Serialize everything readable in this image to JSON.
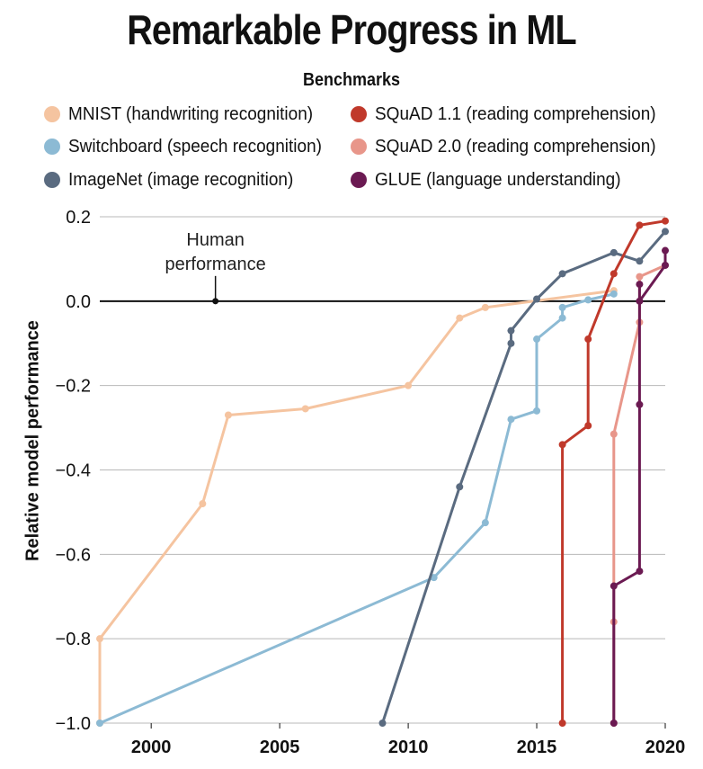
{
  "chart_data": {
    "type": "line",
    "title": "Remarkable Progress in ML",
    "legend_title": "Benchmarks",
    "ylabel": "Relative model performance",
    "xlabel": "",
    "xlim": [
      1998,
      2020
    ],
    "ylim": [
      -1.0,
      0.2
    ],
    "x_ticks": [
      2000,
      2005,
      2010,
      2015,
      2020
    ],
    "y_ticks": [
      0.2,
      0.0,
      -0.2,
      -0.4,
      -0.6,
      -0.8,
      -1.0
    ],
    "y_tick_labels": [
      "0.2",
      "0.0",
      "−0.2",
      "−0.4",
      "−0.6",
      "−0.8",
      "−1.0"
    ],
    "grid": true,
    "legend_position": "top",
    "annotation": {
      "text_lines": [
        "Human",
        "performance"
      ],
      "x": 2002.5,
      "y": 0.0
    },
    "series": [
      {
        "name": "MNIST (handwriting recognition)",
        "color": "#f5c4a0",
        "x": [
          1998,
          1998,
          2002,
          2003,
          2006,
          2010,
          2012,
          2013,
          2018
        ],
        "y": [
          -1.0,
          -0.8,
          -0.48,
          -0.27,
          -0.255,
          -0.2,
          -0.04,
          -0.015,
          0.025
        ]
      },
      {
        "name": "Switchboard (speech recognition)",
        "color": "#8cbad4",
        "x": [
          1998,
          2011,
          2013,
          2014,
          2015,
          2015,
          2016,
          2016,
          2017,
          2018
        ],
        "y": [
          -1.0,
          -0.655,
          -0.525,
          -0.28,
          -0.26,
          -0.09,
          -0.04,
          -0.015,
          0.003,
          0.017
        ]
      },
      {
        "name": "ImageNet (image recognition)",
        "color": "#5a6b80",
        "x": [
          2009,
          2012,
          2014,
          2014,
          2015,
          2016,
          2018,
          2019,
          2020
        ],
        "y": [
          -1.0,
          -0.44,
          -0.1,
          -0.07,
          0.005,
          0.065,
          0.115,
          0.095,
          0.165
        ]
      },
      {
        "name": "SQuAD 1.1 (reading comprehension)",
        "color": "#c0392b",
        "x": [
          2016,
          2016,
          2017,
          2017,
          2018,
          2019,
          2020
        ],
        "y": [
          -1.0,
          -0.34,
          -0.295,
          -0.09,
          0.065,
          0.18,
          0.19
        ]
      },
      {
        "name": "SQuAD 2.0 (reading comprehension)",
        "color": "#e8968a",
        "x": [
          2018,
          2018,
          2018,
          2019,
          2019,
          2020
        ],
        "y": [
          -1.0,
          -0.76,
          -0.315,
          -0.05,
          0.058,
          0.085
        ]
      },
      {
        "name": "GLUE (language understanding)",
        "color": "#6b1a52",
        "x": [
          2018,
          2018,
          2019,
          2019,
          2019,
          2019,
          2020,
          2020
        ],
        "y": [
          -1.0,
          -0.675,
          -0.64,
          -0.245,
          0.04,
          0.0,
          0.085,
          0.12
        ]
      }
    ]
  }
}
